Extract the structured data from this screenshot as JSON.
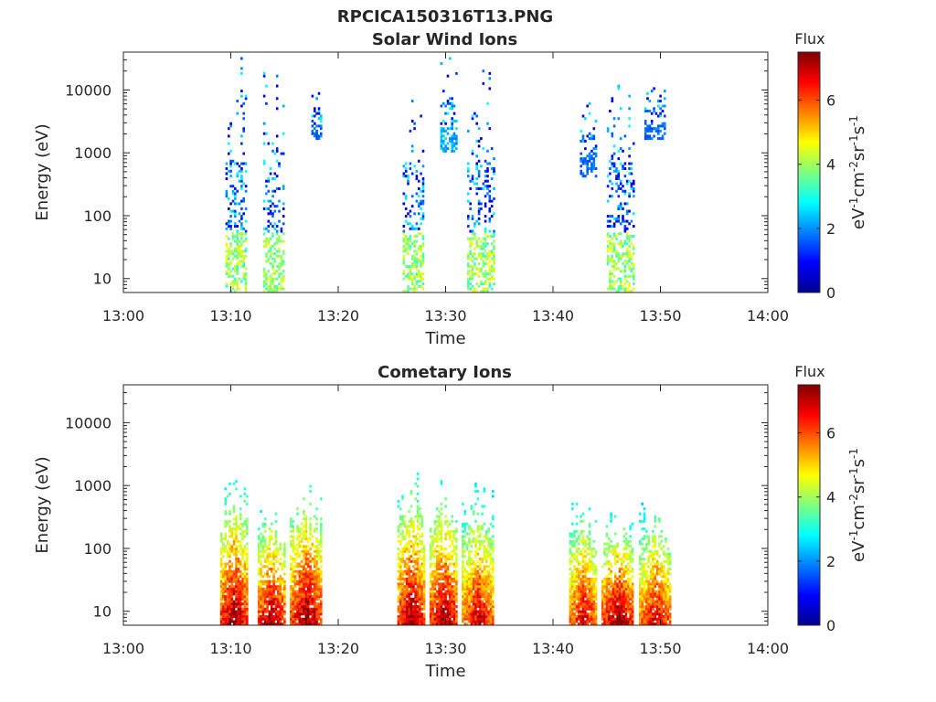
{
  "figure": {
    "title": "RPCICA150316T13.PNG"
  },
  "chart_data": [
    {
      "type": "heatmap",
      "title": "Solar Wind Ions",
      "xlabel": "Time",
      "ylabel": "Energy (eV)",
      "y_scale": "log",
      "xlim": [
        "13:00",
        "14:00"
      ],
      "ylim": [
        6,
        40000
      ],
      "x_ticks": [
        "13:00",
        "13:10",
        "13:20",
        "13:30",
        "13:40",
        "13:50",
        "14:00"
      ],
      "y_ticks": [
        10,
        100,
        1000,
        10000
      ],
      "y_tick_labels": [
        "10",
        "100",
        "1000",
        "10000"
      ],
      "grid": false,
      "colorbar": {
        "title": "Flux",
        "label": "eV-1cm-2sr-1s-1",
        "range": [
          0,
          7.5
        ],
        "ticks": [
          0,
          2,
          4,
          6
        ],
        "colormap": "jet"
      },
      "bursts": [
        {
          "start": "13:09.5",
          "end": "13:11.5",
          "e_min": 6,
          "e_max": 40000,
          "peak_flux": 4.5
        },
        {
          "start": "13:13.0",
          "end": "13:15.0",
          "e_min": 6,
          "e_max": 30000,
          "peak_flux": 4.5
        },
        {
          "start": "13:17.5",
          "end": "13:18.5",
          "e_min": 1500,
          "e_max": 18000,
          "peak_flux": 2.0
        },
        {
          "start": "13:26.0",
          "end": "13:28.0",
          "e_min": 6,
          "e_max": 30000,
          "peak_flux": 4.5
        },
        {
          "start": "13:29.5",
          "end": "13:31.0",
          "e_min": 1000,
          "e_max": 35000,
          "peak_flux": 2.5
        },
        {
          "start": "13:32.0",
          "end": "13:34.5",
          "e_min": 6,
          "e_max": 35000,
          "peak_flux": 4.5
        },
        {
          "start": "13:42.5",
          "end": "13:44.0",
          "e_min": 400,
          "e_max": 9000,
          "peak_flux": 2.0
        },
        {
          "start": "13:45.0",
          "end": "13:47.5",
          "e_min": 6,
          "e_max": 35000,
          "peak_flux": 4.5
        },
        {
          "start": "13:48.5",
          "end": "13:50.5",
          "e_min": 1500,
          "e_max": 25000,
          "peak_flux": 2.0
        }
      ]
    },
    {
      "type": "heatmap",
      "title": "Cometary Ions",
      "xlabel": "Time",
      "ylabel": "Energy (eV)",
      "y_scale": "log",
      "xlim": [
        "13:00",
        "14:00"
      ],
      "ylim": [
        6,
        40000
      ],
      "x_ticks": [
        "13:00",
        "13:10",
        "13:20",
        "13:30",
        "13:40",
        "13:50",
        "14:00"
      ],
      "y_ticks": [
        10,
        100,
        1000,
        10000
      ],
      "y_tick_labels": [
        "10",
        "100",
        "1000",
        "10000"
      ],
      "grid": false,
      "colorbar": {
        "title": "Flux",
        "label": "eV-1cm-2sr-1s-1",
        "range": [
          0,
          7.5
        ],
        "ticks": [
          0,
          2,
          4,
          6
        ],
        "colormap": "jet"
      },
      "bursts": [
        {
          "start": "13:09.0",
          "end": "13:11.5",
          "e_min": 6,
          "e_max": 1600,
          "peak_flux": 7.0
        },
        {
          "start": "13:12.5",
          "end": "13:15.0",
          "e_min": 6,
          "e_max": 600,
          "peak_flux": 7.0
        },
        {
          "start": "13:15.5",
          "end": "13:18.5",
          "e_min": 6,
          "e_max": 1500,
          "peak_flux": 7.0
        },
        {
          "start": "13:25.5",
          "end": "13:28.0",
          "e_min": 6,
          "e_max": 1700,
          "peak_flux": 7.0
        },
        {
          "start": "13:28.5",
          "end": "13:31.0",
          "e_min": 6,
          "e_max": 1300,
          "peak_flux": 7.0
        },
        {
          "start": "13:31.5",
          "end": "13:34.5",
          "e_min": 6,
          "e_max": 1100,
          "peak_flux": 6.5
        },
        {
          "start": "13:41.5",
          "end": "13:44.0",
          "e_min": 6,
          "e_max": 800,
          "peak_flux": 6.5
        },
        {
          "start": "13:44.5",
          "end": "13:47.5",
          "e_min": 6,
          "e_max": 450,
          "peak_flux": 7.0
        },
        {
          "start": "13:48.0",
          "end": "13:51.0",
          "e_min": 6,
          "e_max": 650,
          "peak_flux": 6.5
        }
      ]
    }
  ]
}
